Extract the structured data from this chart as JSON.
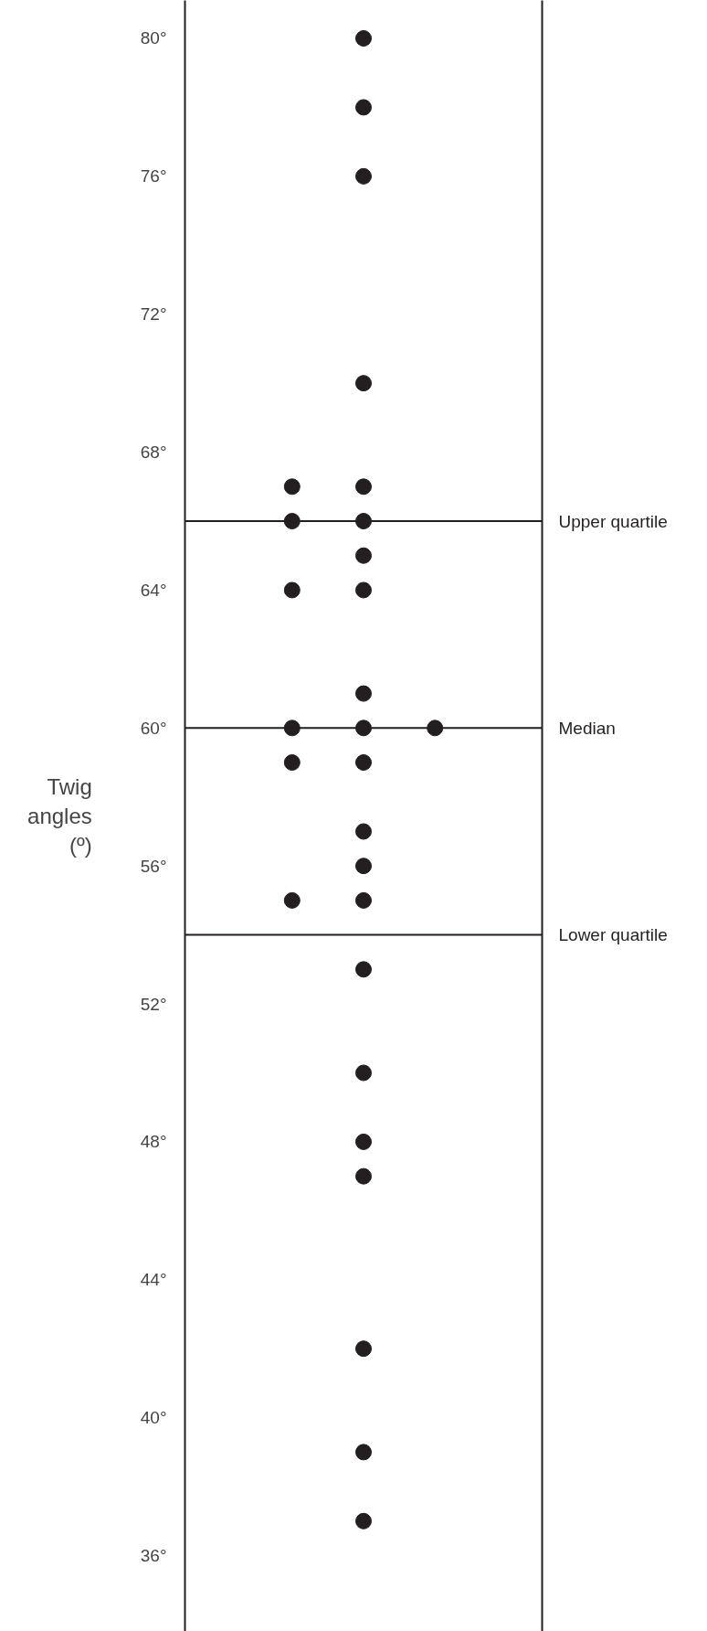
{
  "chart_data": {
    "type": "scatter",
    "ylabel": "Twig angles (º)",
    "categories": [
      null,
      null,
      null
    ],
    "series": [
      {
        "color": "#231f20",
        "values": [
          null,
          80,
          null
        ]
      },
      {
        "color": "#231f20",
        "values": [
          null,
          78,
          null
        ]
      },
      {
        "color": "#231f20",
        "values": [
          null,
          76,
          null
        ]
      },
      {
        "color": "#231f20",
        "values": [
          null,
          70,
          null
        ]
      },
      {
        "color": "#231f20",
        "values": [
          67,
          67,
          null
        ]
      },
      {
        "color": "#231f20",
        "values": [
          66,
          66,
          null
        ]
      },
      {
        "color": "#231f20",
        "values": [
          null,
          65,
          null
        ]
      },
      {
        "color": "#231f20",
        "values": [
          64,
          64,
          null
        ]
      },
      {
        "color": "#231f20",
        "values": [
          null,
          61,
          null
        ]
      },
      {
        "color": "#231f20",
        "values": [
          60,
          60,
          60
        ]
      },
      {
        "color": "#231f20",
        "values": [
          59,
          59,
          null
        ]
      },
      {
        "color": "#231f20",
        "values": [
          null,
          57,
          null
        ]
      },
      {
        "color": "#231f20",
        "values": [
          null,
          56,
          null
        ]
      },
      {
        "color": "#231f20",
        "values": [
          55,
          55,
          null
        ]
      },
      {
        "color": "#231f20",
        "values": [
          null,
          53,
          null
        ]
      },
      {
        "color": "#231f20",
        "values": [
          null,
          50,
          null
        ]
      },
      {
        "color": "#231f20",
        "values": [
          null,
          48,
          null
        ]
      },
      {
        "color": "#231f20",
        "values": [
          null,
          47,
          null
        ]
      },
      {
        "color": "#231f20",
        "values": [
          null,
          42,
          null
        ]
      },
      {
        "color": "#231f20",
        "values": [
          null,
          39,
          null
        ]
      },
      {
        "color": "#231f20",
        "values": [
          null,
          37,
          null
        ]
      }
    ],
    "marker": "circle",
    "ylim": [
      33.8,
      81.1
    ],
    "yticks": [
      {
        "value": 36,
        "label": "36°"
      },
      {
        "value": 40,
        "label": "40°"
      },
      {
        "value": 44,
        "label": "44°"
      },
      {
        "value": 48,
        "label": "48°"
      },
      {
        "value": 52,
        "label": "52°"
      },
      {
        "value": 56,
        "label": "56°"
      },
      {
        "value": 60,
        "label": "60°"
      },
      {
        "value": 64,
        "label": "64°"
      },
      {
        "value": 68,
        "label": "68°"
      },
      {
        "value": 72,
        "label": "72°"
      },
      {
        "value": 76,
        "label": "76°"
      },
      {
        "value": 80,
        "label": "80°"
      }
    ],
    "tick_labels": "y",
    "grid": false,
    "ref_lines": [
      {
        "axis": "y",
        "value": 66,
        "label": "Upper quartile",
        "color": "#231f20"
      },
      {
        "axis": "y",
        "value": 60,
        "label": "Median",
        "color": "#231f20"
      },
      {
        "axis": "y",
        "value": 54,
        "label": "Lower quartile",
        "color": "#231f20"
      }
    ]
  }
}
